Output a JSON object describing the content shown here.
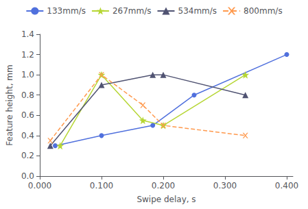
{
  "chart_data": {
    "type": "line",
    "xlabel": "Swipe delay, s",
    "ylabel": "Feature height, mm",
    "series": [
      {
        "name": "133mm/s",
        "x": [
          0.025,
          0.1,
          0.183,
          0.25,
          0.4
        ],
        "values": [
          0.3,
          0.4,
          0.5,
          0.8,
          1.2
        ],
        "marker": "circle",
        "line_style": "solid"
      },
      {
        "name": "267mm/s",
        "x": [
          0.033,
          0.1,
          0.167,
          0.2,
          0.333
        ],
        "values": [
          0.3,
          1.0,
          0.55,
          0.5,
          1.0
        ],
        "marker": "star",
        "line_style": "solid"
      },
      {
        "name": "534mm/s",
        "x": [
          0.017,
          0.1,
          0.183,
          0.2,
          0.333
        ],
        "values": [
          0.3,
          0.9,
          1.0,
          1.0,
          0.8
        ],
        "marker": "triangle",
        "line_style": "solid"
      },
      {
        "name": "800mm/s",
        "x": [
          0.017,
          0.1,
          0.167,
          0.2,
          0.333
        ],
        "values": [
          0.35,
          1.0,
          0.7,
          0.5,
          0.4
        ],
        "marker": "x",
        "line_style": "dashed"
      }
    ],
    "xlim": [
      0.0,
      0.41
    ],
    "ylim": [
      0,
      1.4
    ],
    "xticks": [
      {
        "value": 0,
        "label": "0.000"
      },
      {
        "value": 0.1,
        "label": "0.100"
      },
      {
        "value": 0.2,
        "label": "0.200"
      },
      {
        "value": 0.3,
        "label": "0.300"
      },
      {
        "value": 0.4,
        "label": "0.400"
      }
    ],
    "yticks": [
      {
        "value": 0,
        "label": "0.0"
      },
      0.2,
      0.4,
      0.6,
      0.8,
      {
        "value": 1.0,
        "label": "1.0"
      },
      1.2,
      1.4
    ],
    "grid": false,
    "legend": "top"
  }
}
